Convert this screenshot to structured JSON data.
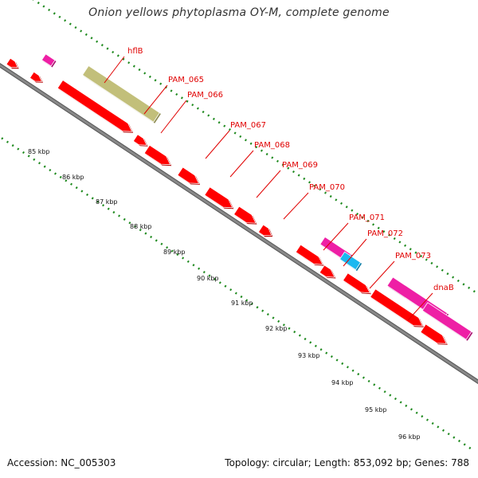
{
  "title": "Onion yellows phytoplasma OY-M, complete genome",
  "accession": "Accession: NC_005303",
  "topology": "Topology: circular; Length: 853,092 bp; Genes: 788",
  "colors": {
    "cds": "#ff0000",
    "cds_dark": "#b30000",
    "magenta": "#ee1fa5",
    "magenta_dark": "#a8106f",
    "olive": "#c2bf7a",
    "olive_dark": "#8c8a50",
    "cyan": "#1ab8f0",
    "cyan_dark": "#0a7ea8",
    "axis": "#888888",
    "axis_dark": "#555555",
    "tick": "#1f8a1f",
    "label": "#e00000"
  },
  "kbp_labels": [
    "85 kbp",
    "86 kbp",
    "87 kbp",
    "88 kbp",
    "89 kbp",
    "90 kbp",
    "91 kbp",
    "92 kbp",
    "93 kbp",
    "94 kbp",
    "95 kbp",
    "96 kbp"
  ],
  "gene_labels": [
    "hflB",
    "PAM_065",
    "PAM_066",
    "PAM_067",
    "PAM_068",
    "PAM_069",
    "PAM_070",
    "PAM_071",
    "PAM_072",
    "PAM_073",
    "dnaB"
  ]
}
